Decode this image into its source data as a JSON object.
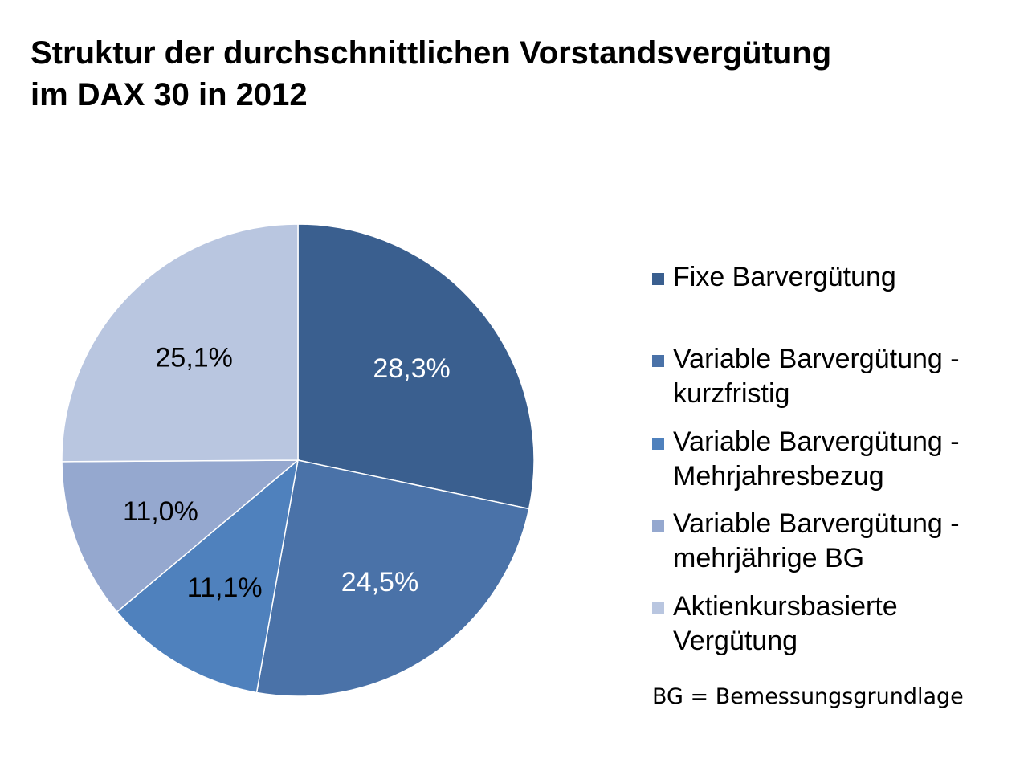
{
  "title": {
    "line1": "Struktur der durchschnittlichen Vorstandsvergütung",
    "line2": "im DAX 30 in 2012"
  },
  "chart_data": {
    "type": "pie",
    "title": "Struktur der durchschnittlichen Vorstandsvergütung im DAX 30 in 2012",
    "legend_position": "right",
    "slices": [
      {
        "name": "Fixe Barvergütung",
        "value": 28.3,
        "label": "28,3%",
        "color": "#3A5F8F",
        "label_color": "#ffffff"
      },
      {
        "name": "Variable Barvergütung - kurzfristig",
        "value": 24.5,
        "label": "24,5%",
        "color": "#4A72A8",
        "label_color": "#ffffff"
      },
      {
        "name": "Variable Barvergütung - Mehrjahresbezug",
        "value": 11.1,
        "label": "11,1%",
        "color": "#4F81BD",
        "label_color": "#000000"
      },
      {
        "name": "Variable Barvergütung - mehrjährige BG",
        "value": 11.0,
        "label": "11,0%",
        "color": "#95A8CF",
        "label_color": "#000000"
      },
      {
        "name": "Aktienkursbasierte Vergütung",
        "value": 25.1,
        "label": "25,1%",
        "color": "#B9C6E0",
        "label_color": "#000000"
      }
    ]
  },
  "legend": {
    "items": [
      {
        "text": "Fixe Barvergütung",
        "color": "#3A5F8F"
      },
      {
        "text": "Variable Barvergütung -\nkurzfristig",
        "color": "#4A72A8"
      },
      {
        "text": "Variable Barvergütung -\nMehrjahresbezug",
        "color": "#4F81BD"
      },
      {
        "text": "Variable Barvergütung -\nmehrjährige BG",
        "color": "#95A8CF"
      },
      {
        "text": "Aktienkursbasierte\nVergütung",
        "color": "#B9C6E0"
      }
    ]
  },
  "footnote": "BG = Bemessungsgrundlage"
}
